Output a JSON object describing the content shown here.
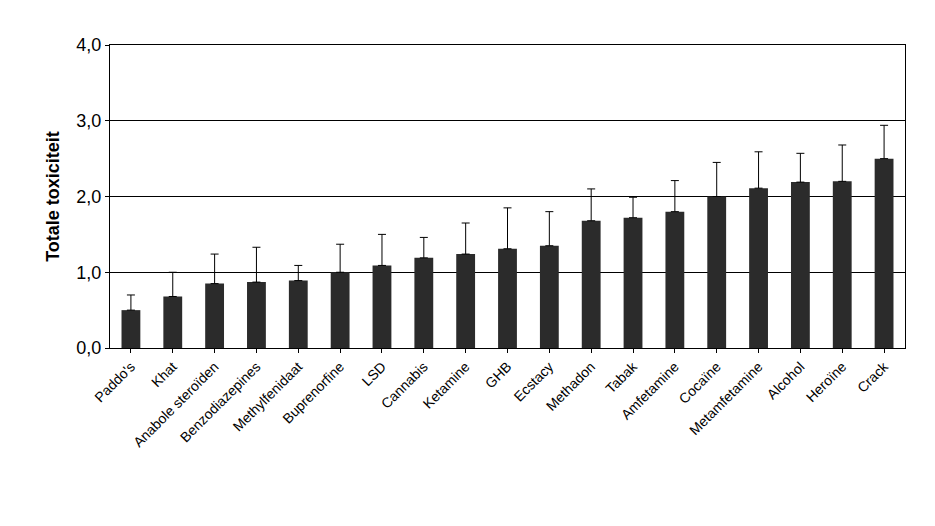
{
  "chart_data": {
    "type": "bar",
    "categories": [
      "Paddo's",
      "Khat",
      "Anabole steroïden",
      "Benzodiazepines",
      "Methylfenidaat",
      "Buprenorfine",
      "LSD",
      "Cannabis",
      "Ketamine",
      "GHB",
      "Ecstacy",
      "Methadon",
      "Tabak",
      "Amfetamine",
      "Cocaïne",
      "Metamfetamine",
      "Alcohol",
      "Heroïne",
      "Crack"
    ],
    "values": [
      0.5,
      0.68,
      0.85,
      0.87,
      0.89,
      1.0,
      1.09,
      1.19,
      1.24,
      1.31,
      1.35,
      1.68,
      1.72,
      1.8,
      2.0,
      2.11,
      2.19,
      2.2,
      2.5
    ],
    "error_plus": [
      0.2,
      0.32,
      0.39,
      0.46,
      0.2,
      0.37,
      0.41,
      0.27,
      0.41,
      0.54,
      0.45,
      0.42,
      0.27,
      0.41,
      0.45,
      0.48,
      0.38,
      0.48,
      0.44
    ],
    "y_label": "Totale toxiciteit",
    "color": "#2b2b2b",
    "ylim": [
      0,
      4
    ],
    "yticks": [
      {
        "value": 0,
        "label": "0,0"
      },
      {
        "value": 1,
        "label": "1,0"
      },
      {
        "value": 2,
        "label": "2,0"
      },
      {
        "value": 3,
        "label": "3,0"
      },
      {
        "value": 4,
        "label": "4,0"
      }
    ],
    "grid": true
  }
}
